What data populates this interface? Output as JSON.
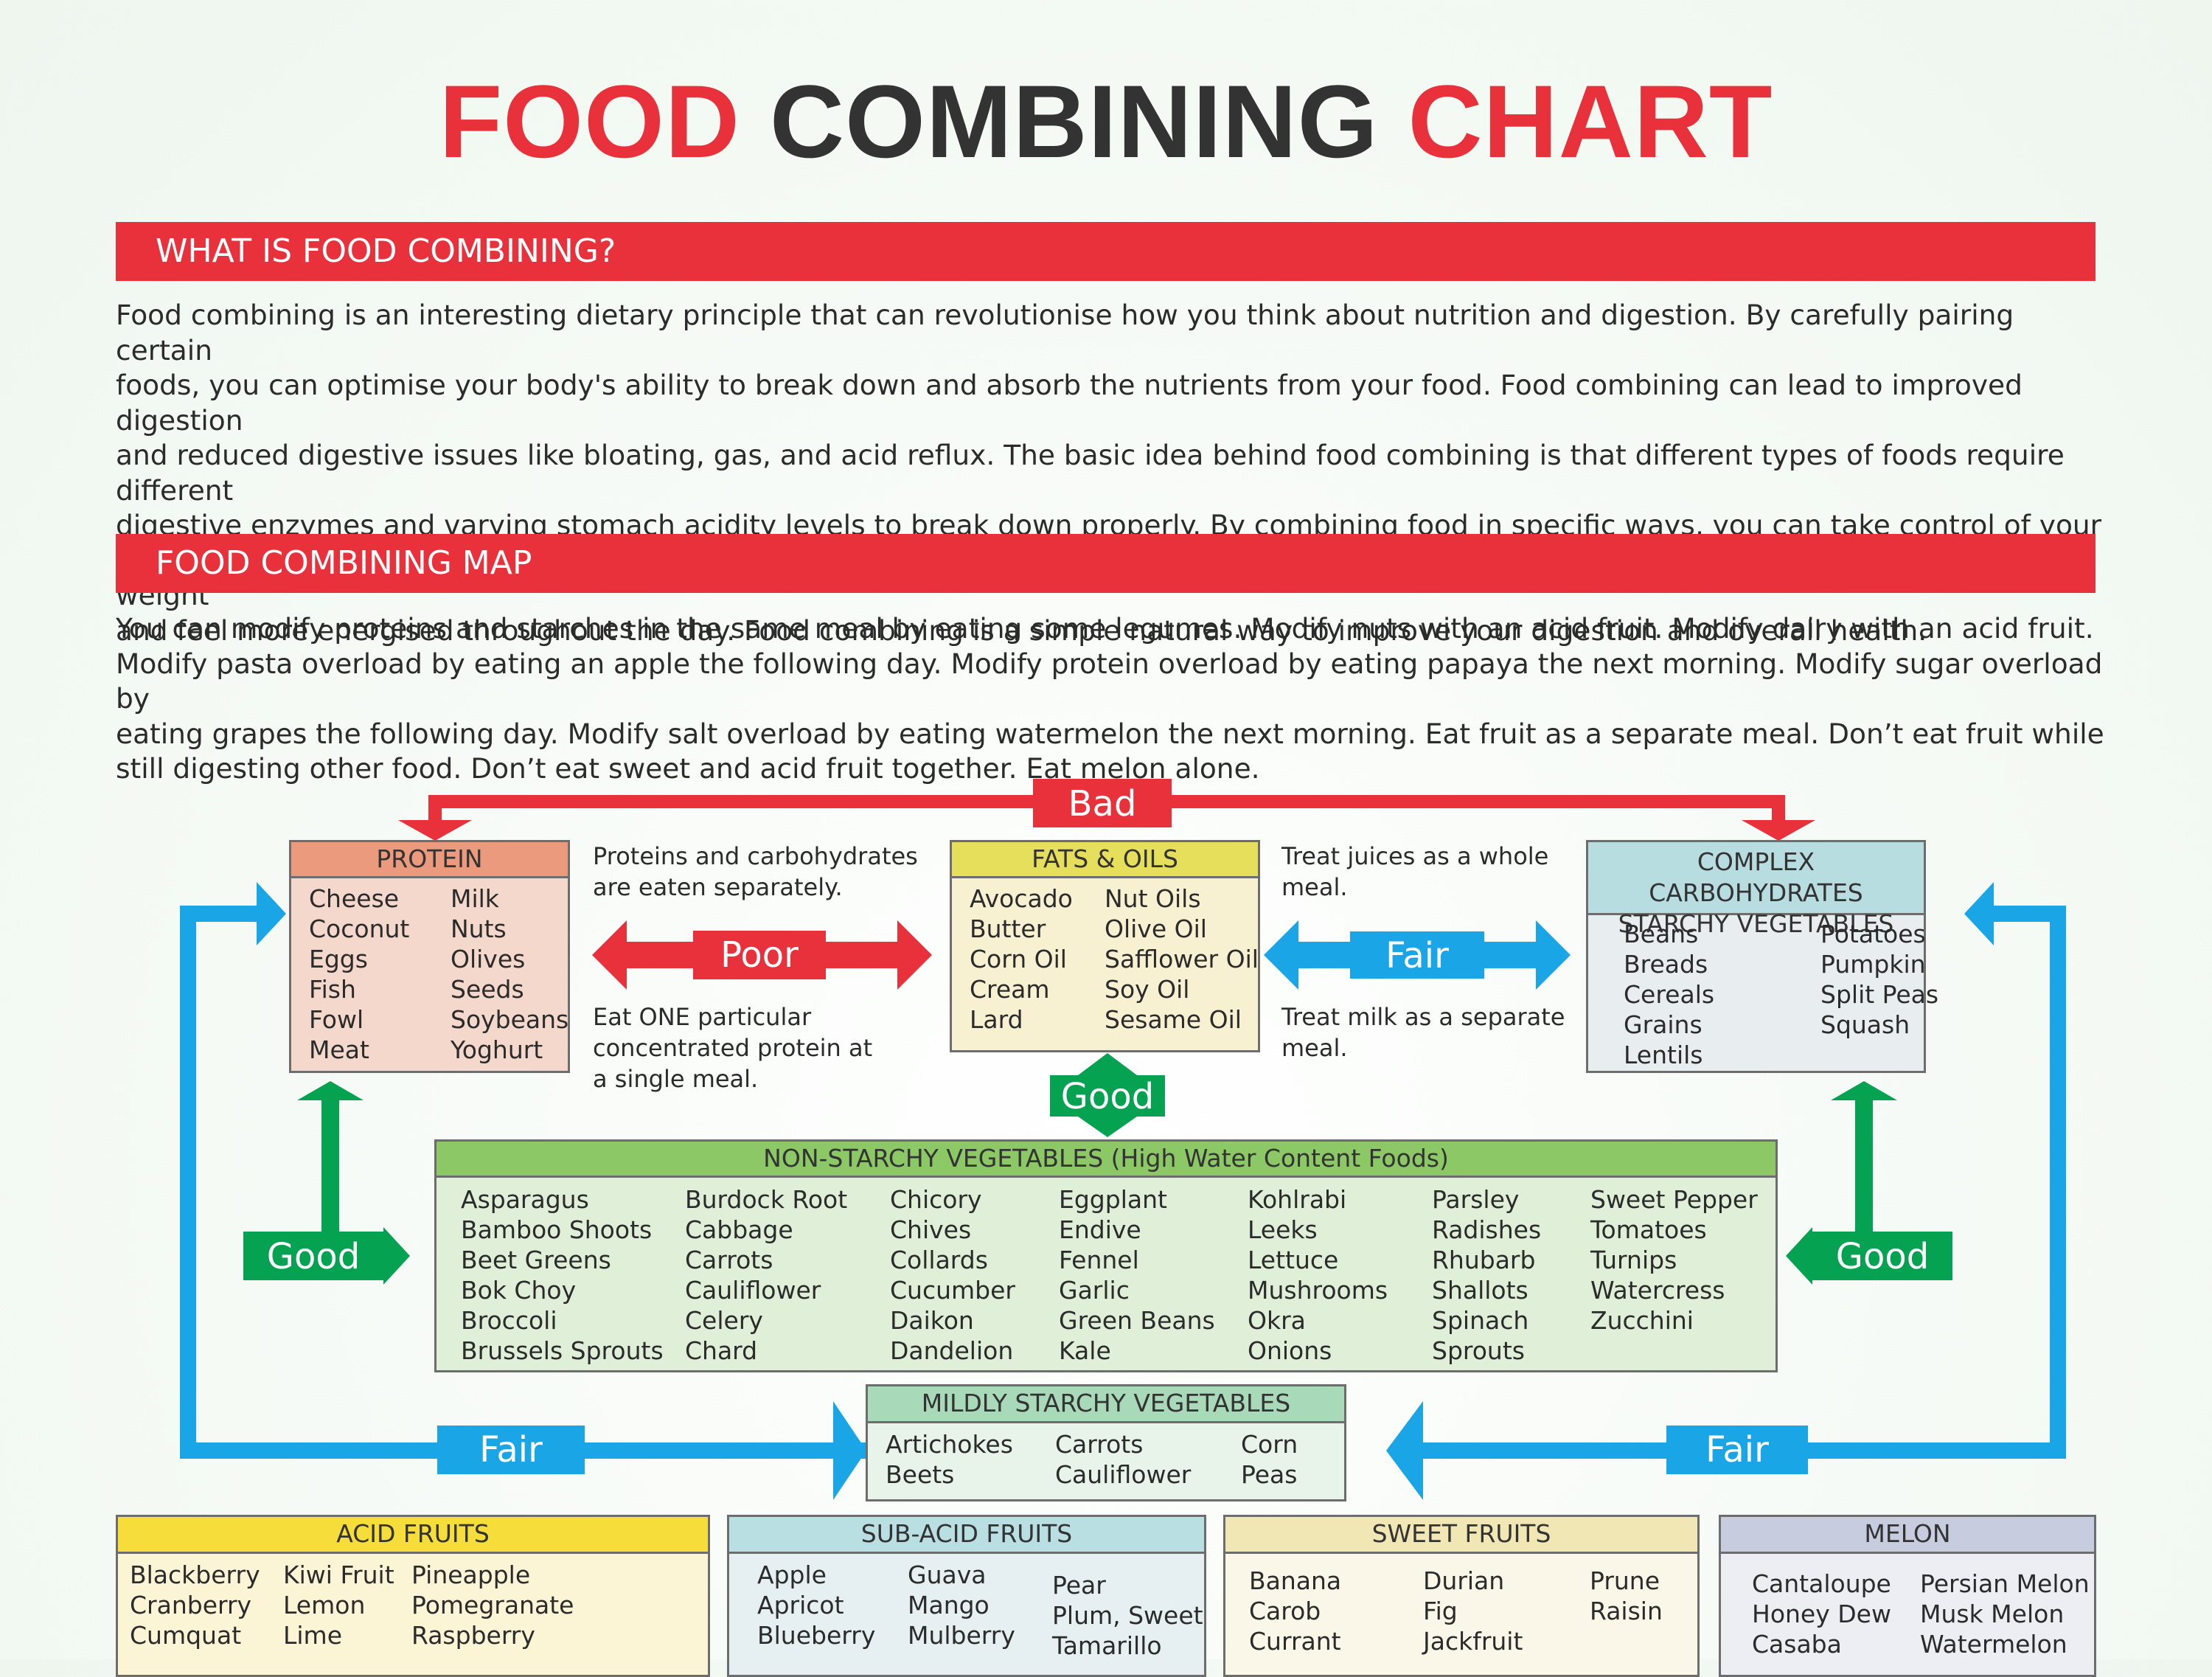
{
  "title": {
    "word1": "FOOD",
    "word2": "COMBINING",
    "word3": "CHART"
  },
  "section1": {
    "heading": "WHAT IS FOOD COMBINING?",
    "lines": [
      "Food combining is an interesting dietary principle that can revolutionise how you think about nutrition and digestion. By carefully pairing certain",
      "foods, you can optimise your body's ability to break down and absorb the nutrients from your food. Food combining can lead to improved digestion",
      "and reduced digestive issues like bloating, gas, and acid reflux. The basic idea behind food combining is that different types of foods require different",
      "digestive enzymes and varying stomach acidity levels to break down properly. By combining food in specific ways, you can take control of your",
      "digestive health and enjoy a more comfortable, fulfilling eating experience. Plus, many people report that food combining can help them lose weight",
      "and feel more energised throughout the day. Food combining is a simple natural way to improve your digestion and overall health."
    ]
  },
  "section2": {
    "heading": "FOOD COMBINING MAP",
    "lines": [
      "You can modify proteins and starches in the same meal by eating some legumes. Modify nuts with an acid fruit. Modify dairy with an acid fruit.",
      "Modify pasta overload by eating an apple the following day. Modify protein overload by eating papaya the next morning. Modify sugar overload by",
      "eating grapes the following day. Modify salt overload by eating watermelon the next morning. Eat fruit as a separate meal. Don’t eat fruit while",
      "still digesting other food. Don’t eat sweet and acid fruit together. Eat melon alone."
    ]
  },
  "labels": {
    "bad": "Bad",
    "poor": "Poor",
    "fair": "Fair",
    "good": "Good"
  },
  "notes": {
    "proteins_carbs": [
      "Proteins and carbohydrates",
      "are eaten separately."
    ],
    "one_protein": [
      "Eat ONE particular",
      "concentrated protein at",
      "a single meal."
    ],
    "juices": [
      "Treat juices as a whole",
      "meal."
    ],
    "milk": [
      "Treat milk as a separate",
      "meal."
    ]
  },
  "protein": {
    "title": "PROTEIN",
    "col1": [
      "Cheese",
      "Coconut",
      "Eggs",
      "Fish",
      "Fowl",
      "Meat"
    ],
    "col2": [
      "Milk",
      "Nuts",
      "Olives",
      "Seeds",
      "Soybeans",
      "Yoghurt"
    ]
  },
  "fats": {
    "title": "FATS & OILS",
    "col1": [
      "Avocado",
      "Butter",
      "Corn Oil",
      "Cream",
      "Lard"
    ],
    "col2": [
      "Nut Oils",
      "Olive Oil",
      "Safflower Oil",
      "Soy Oil",
      "Sesame Oil"
    ]
  },
  "carbs": {
    "title_line1": "COMPLEX CARBOHYDRATES",
    "title_line2": "STARCHY VEGETABLES",
    "col1": [
      "Beans",
      "Breads",
      "Cereals",
      "Grains",
      "Lentils"
    ],
    "col2": [
      "Potatoes",
      "Pumpkin",
      "Split Peas",
      "Squash"
    ]
  },
  "nonstarchy": {
    "title": "NON-STARCHY VEGETABLES (High Water Content Foods)",
    "cols": [
      [
        "Asparagus",
        "Bamboo Shoots",
        "Beet Greens",
        "Bok Choy",
        "Broccoli",
        "Brussels Sprouts"
      ],
      [
        "Burdock Root",
        "Cabbage",
        "Carrots",
        "Cauliflower",
        "Celery",
        "Chard"
      ],
      [
        "Chicory",
        "Chives",
        "Collards",
        "Cucumber",
        "Daikon",
        "Dandelion"
      ],
      [
        "Eggplant",
        "Endive",
        "Fennel",
        "Garlic",
        "Green Beans",
        "Kale"
      ],
      [
        "Kohlrabi",
        "Leeks",
        "Lettuce",
        "Mushrooms",
        "Okra",
        "Onions"
      ],
      [
        "Parsley",
        "Radishes",
        "Rhubarb",
        "Shallots",
        "Spinach",
        "Sprouts"
      ],
      [
        "Sweet Pepper",
        "Tomatoes",
        "Turnips",
        "Watercress",
        "Zucchini"
      ]
    ]
  },
  "mildly": {
    "title": "MILDLY STARCHY VEGETABLES",
    "cols": [
      [
        "Artichokes",
        "Beets"
      ],
      [
        "Carrots",
        "Cauliflower"
      ],
      [
        "Corn",
        "Peas"
      ]
    ]
  },
  "acid": {
    "title": "ACID FRUITS",
    "cols": [
      [
        "Blackberry",
        "Cranberry",
        "Cumquat"
      ],
      [
        "Kiwi Fruit",
        "Lemon",
        "Lime"
      ],
      [
        "Pineapple",
        "Pomegranate",
        "Raspberry"
      ]
    ]
  },
  "subacid": {
    "title": "SUB-ACID FRUITS",
    "cols": [
      [
        "Apple",
        "Apricot",
        "Blueberry"
      ],
      [
        "Guava",
        "Mango",
        "Mulberry"
      ],
      [
        "Pear",
        "Plum, Sweet",
        "Tamarillo"
      ]
    ]
  },
  "sweet": {
    "title": "SWEET FRUITS",
    "cols": [
      [
        "Banana",
        "Carob",
        "Currant"
      ],
      [
        "Durian",
        "Fig",
        "Jackfruit"
      ],
      [
        "Prune",
        "Raisin"
      ]
    ]
  },
  "melon": {
    "title": "MELON",
    "cols": [
      [
        "Cantaloupe",
        "Honey Dew",
        "Casaba"
      ],
      [
        "Persian Melon",
        "Musk Melon",
        "Watermelon"
      ]
    ]
  },
  "colors": {
    "red": "#e8313a",
    "blue": "#1aa6e6",
    "green": "#05a351",
    "protein_header": "#ec9a7e",
    "protein_body": "#f5d8cc",
    "fats_header": "#e6df5c",
    "fats_body": "#f7f1d2",
    "carbs_header": "#b8dde0",
    "carbs_body": "#e8eef0",
    "nonstarchy_header": "#8cc866",
    "nonstarchy_body": "#e0efd8",
    "mildly_header": "#a8d9b8",
    "mildly_body": "#e8f3ea",
    "acid_header": "#f7dd3a",
    "acid_body": "#fbf5d6",
    "subacid_header": "#b9dfe3",
    "subacid_body": "#e6f0f2",
    "sweet_header": "#f1e7b4",
    "sweet_body": "#fbf7e8",
    "melon_header": "#c7cddf",
    "melon_body": "#eceef4"
  }
}
